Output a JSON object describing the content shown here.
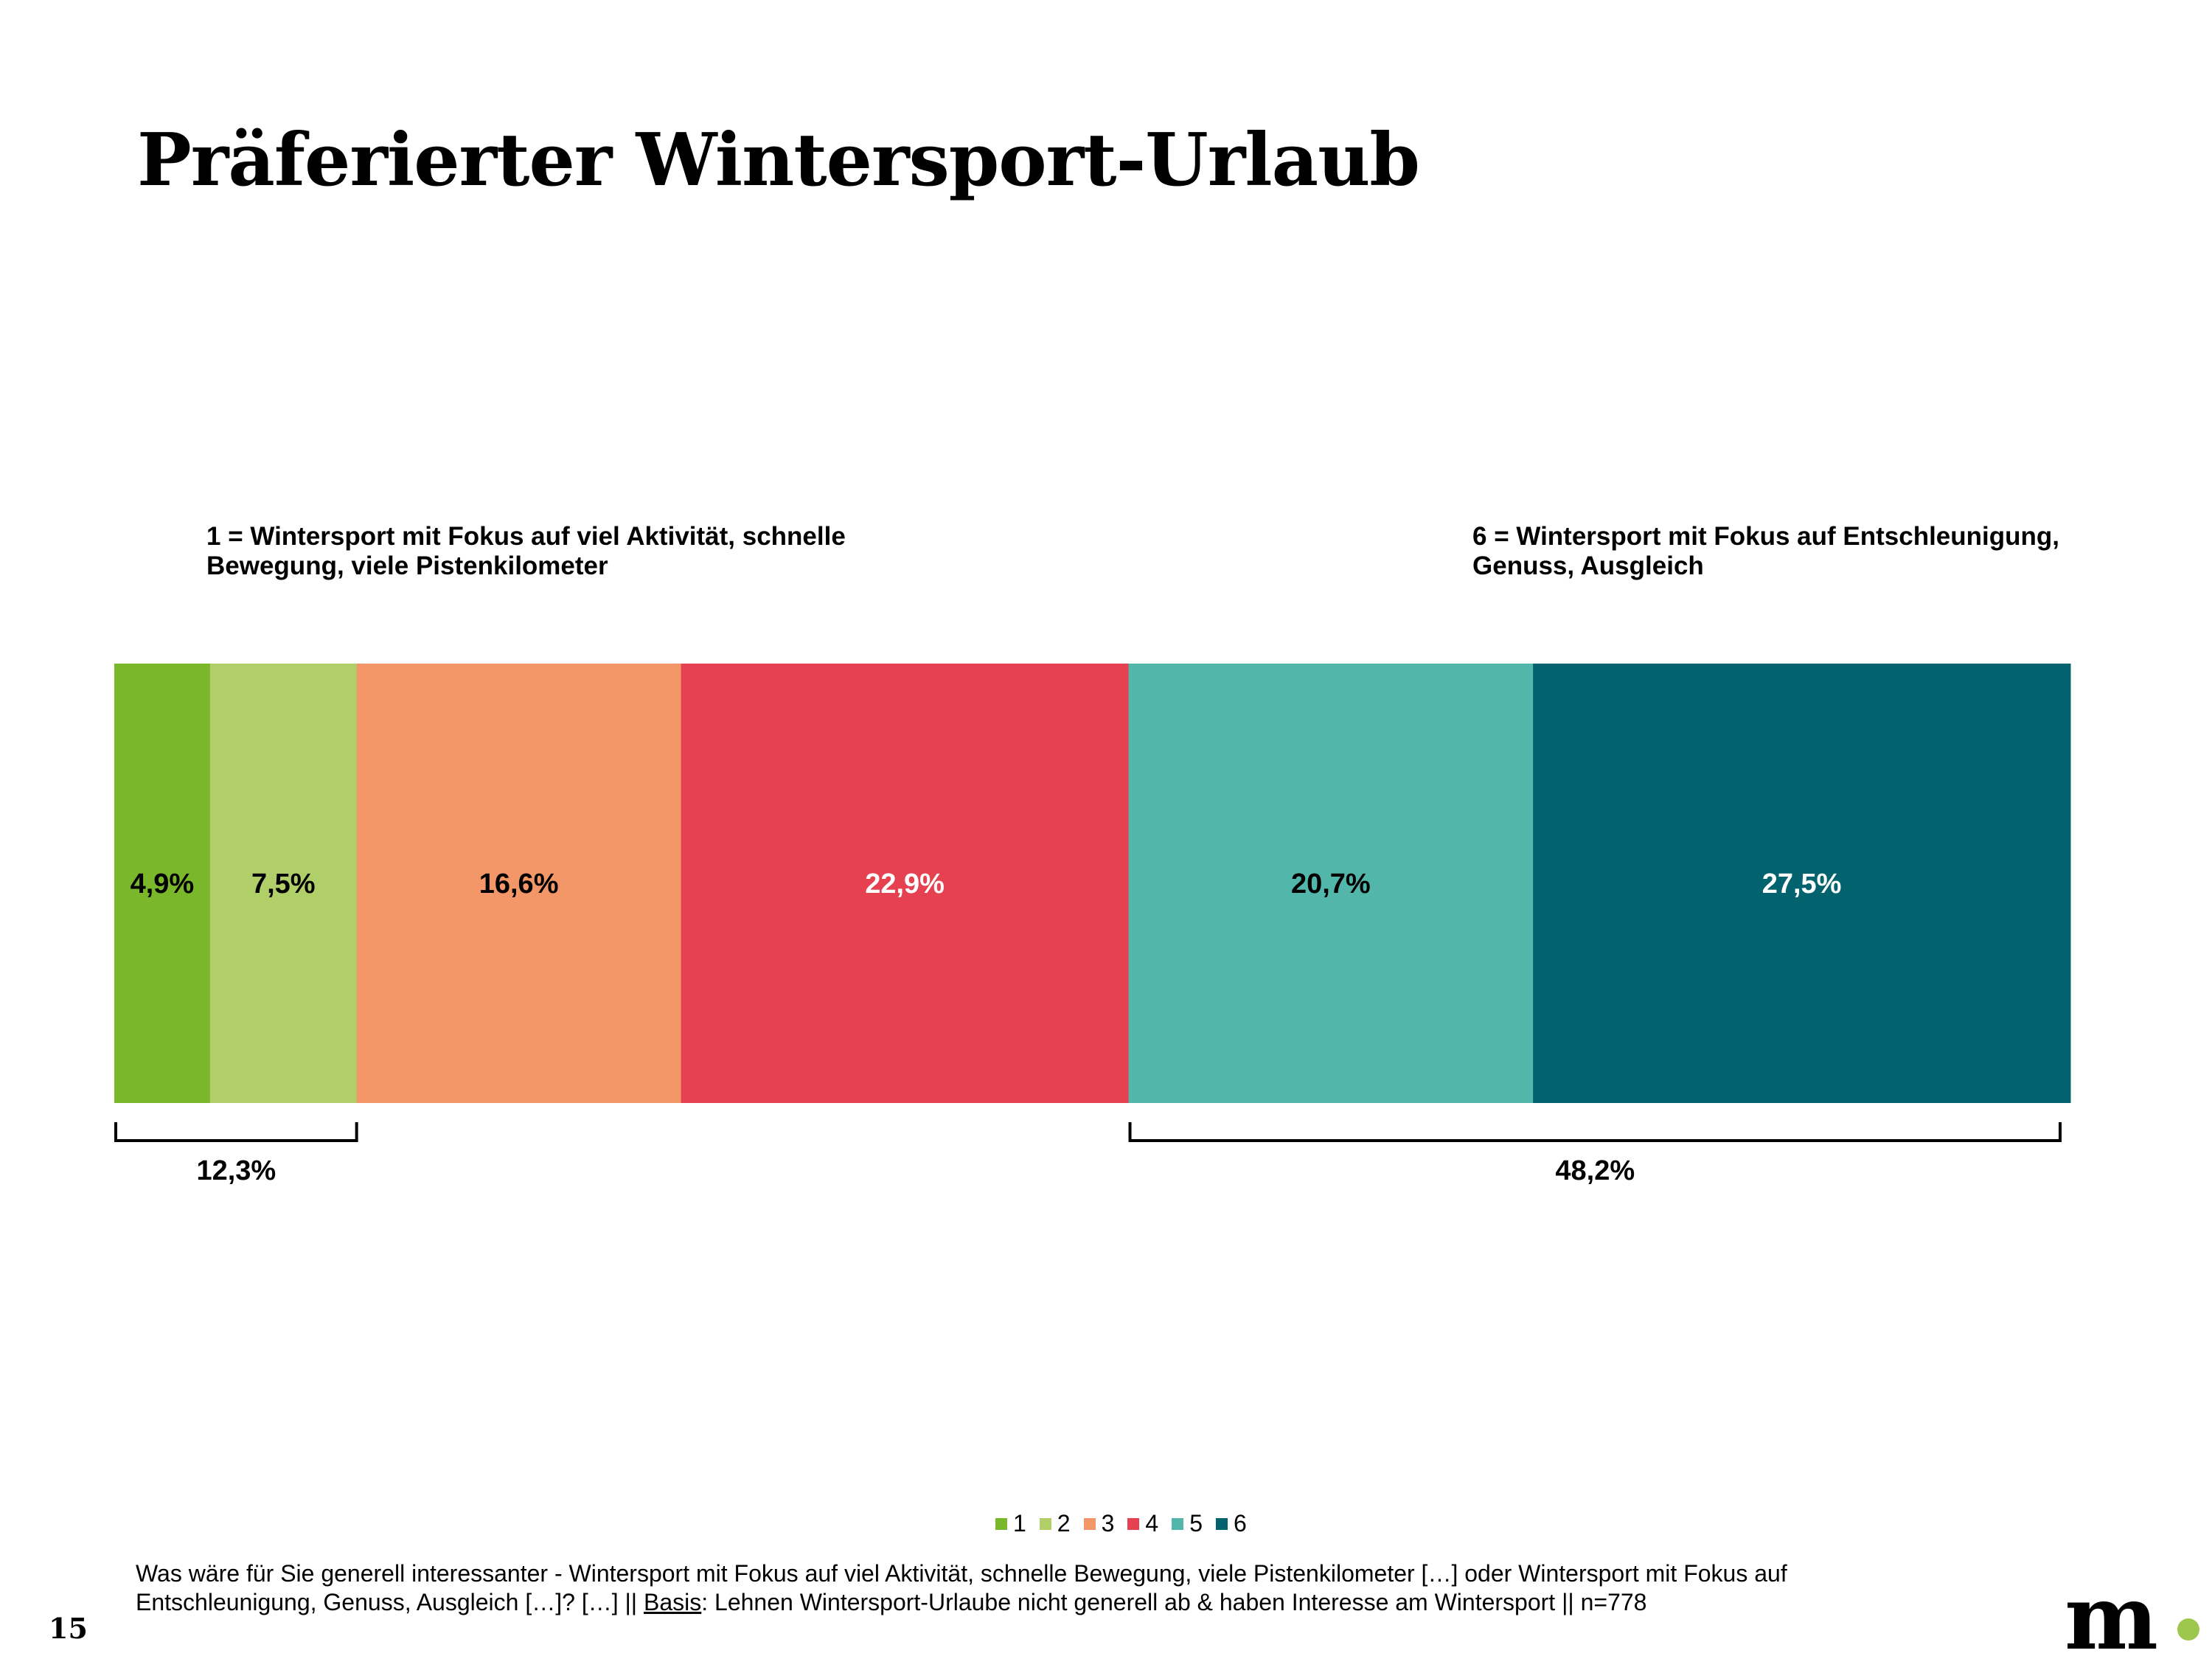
{
  "title": "Präferierter Wintersport-Urlaub",
  "anchors": {
    "left": "1 = Wintersport mit Fokus auf viel Aktivität, schnelle Bewegung, viele Pistenkilometer",
    "right": "6 = Wintersport mit Fokus auf Entschleunigung, Genuss, Ausgleich"
  },
  "chart_data": {
    "type": "bar",
    "orientation": "horizontal-stacked",
    "series": [
      {
        "name": "1",
        "value": 4.9,
        "label": "4,9%",
        "color": "#7ab72a",
        "label_color": "#000000"
      },
      {
        "name": "2",
        "value": 7.5,
        "label": "7,5%",
        "color": "#b1cf68",
        "label_color": "#000000"
      },
      {
        "name": "3",
        "value": 16.6,
        "label": "16,6%",
        "color": "#f39668",
        "label_color": "#000000"
      },
      {
        "name": "4",
        "value": 22.9,
        "label": "22,9%",
        "color": "#e54150",
        "label_color": "#ffffff"
      },
      {
        "name": "5",
        "value": 20.7,
        "label": "20,7%",
        "color": "#53b6ab",
        "label_color": "#000000"
      },
      {
        "name": "6",
        "value": 27.5,
        "label": "27,5%",
        "color": "#02636e",
        "label_color": "#ffffff"
      }
    ],
    "brackets": [
      {
        "from": 0,
        "to": 1,
        "value": 12.3,
        "label": "12,3%"
      },
      {
        "from": 4,
        "to": 5,
        "value": 48.2,
        "label": "48,2%"
      }
    ],
    "xlim": [
      0,
      100
    ],
    "legend_position": "bottom"
  },
  "footnote": {
    "text_before": "Was wäre für Sie generell interessanter - Wintersport mit Fokus auf viel Aktivität, schnelle Bewegung, viele Pistenkilometer […] oder Wintersport mit Fokus auf Entschleunigung, Genuss, Ausgleich […]? […] || ",
    "basis_word": "Basis",
    "text_after": ": Lehnen Wintersport-Urlaube nicht generell ab & haben Interesse am Wintersport || n=778"
  },
  "page_number": "15",
  "logo": "m"
}
